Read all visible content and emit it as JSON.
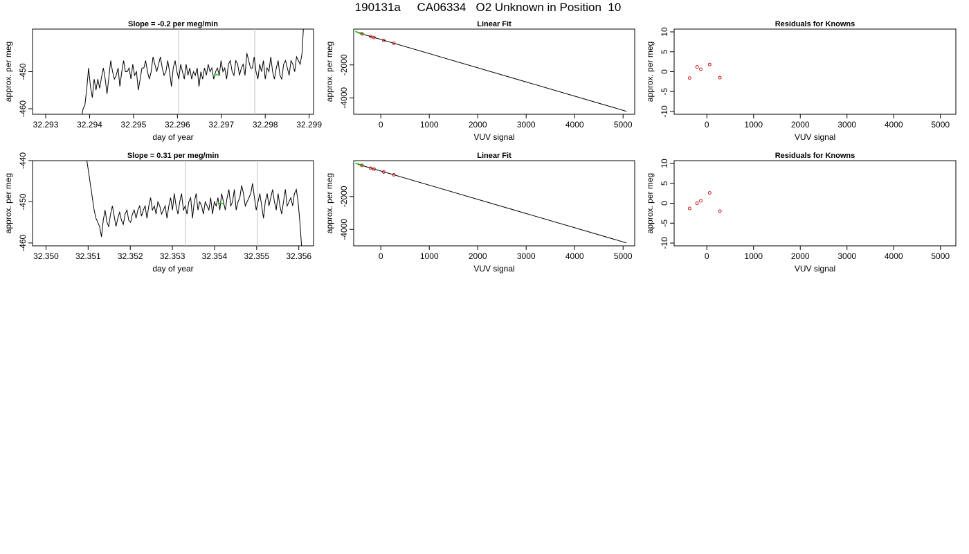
{
  "page_title": "190131a     CA06334   O2 Unknown in Position  10",
  "colors": {
    "line": "#000000",
    "highlight": "#00cc00",
    "known_points": "#cc0000",
    "vertical_markers": "#c8c8c8"
  },
  "chart_data": [
    {
      "type": "line",
      "title": "Slope =  -0.2  per meg/min",
      "xlabel": "day of year",
      "ylabel": "approx. per meg",
      "xlim": [
        32.2927,
        32.2991
      ],
      "ylim": [
        -461.5,
        -438.5
      ],
      "xticks": [
        "32.293",
        "32.294",
        "32.295",
        "32.296",
        "32.297",
        "32.298",
        "32.299"
      ],
      "xtick_values": [
        32.293,
        32.294,
        32.295,
        32.296,
        32.297,
        32.298,
        32.299
      ],
      "yticks": [
        "-460",
        "-450"
      ],
      "ytick_values": [
        -460,
        -450
      ],
      "vertical_lines": [
        32.29603,
        32.29776
      ],
      "trace_x_range": [
        32.29381,
        32.29888
      ],
      "trace": [
        -462.5,
        -460,
        -459,
        -454.5,
        -449,
        -454,
        -457,
        -452,
        -455,
        -452,
        -454.5,
        -451.5,
        -449,
        -452,
        -456,
        -451.5,
        -447,
        -450,
        -452,
        -451,
        -449,
        -454,
        -450,
        -447,
        -450,
        -450,
        -449,
        -452,
        -448,
        -451,
        -450,
        -455,
        -452,
        -449,
        -449,
        -447,
        -450,
        -452,
        -450,
        -446,
        -448,
        -450,
        -448,
        -446,
        -449,
        -451,
        -450,
        -447,
        -450,
        -454,
        -449,
        -447,
        -450,
        -452,
        -448,
        -450,
        -452,
        -448,
        -451,
        -449,
        -452,
        -450,
        -451,
        -449,
        -454,
        -450,
        -452,
        -449,
        -451,
        -448,
        -450,
        -449,
        -452,
        -450,
        -449,
        -451,
        -447,
        -450,
        -449,
        -452,
        -448,
        -447,
        -450,
        -451,
        -447,
        -448,
        -451,
        -449,
        -448,
        -451,
        -445,
        -447,
        -449,
        -449,
        -446,
        -450,
        -452,
        -448,
        -450,
        -447,
        -452,
        -449,
        -450,
        -446,
        -450,
        -452,
        -449,
        -447,
        -451,
        -452,
        -448,
        -447,
        -449,
        -451,
        -447,
        -448,
        -450,
        -446,
        -447,
        -448,
        -445,
        -436
      ],
      "highlight": [
        {
          "x": 32.2969,
          "y": -451.1
        }
      ]
    },
    {
      "type": "scatter",
      "title": "Linear Fit",
      "xlabel": "VUV signal",
      "ylabel": "approx. per meg",
      "xlim": [
        -560,
        5240
      ],
      "ylim": [
        -5000,
        180
      ],
      "xticks": [
        "0",
        "1000",
        "2000",
        "3000",
        "4000",
        "5000"
      ],
      "xtick_values": [
        0,
        1000,
        2000,
        3000,
        4000,
        5000
      ],
      "yticks": [
        "-4000",
        "-2000"
      ],
      "ytick_values": [
        -4000,
        -2000
      ],
      "fit_line": {
        "x": [
          -480,
          5070
        ],
        "y": [
          -35,
          -4820
        ]
      },
      "known_points": [
        {
          "x": -390,
          "y": -110
        },
        {
          "x": -210,
          "y": -280
        },
        {
          "x": -140,
          "y": -330
        },
        {
          "x": 60,
          "y": -510
        },
        {
          "x": 270,
          "y": -680
        }
      ],
      "unknown_points": [
        {
          "x": -455,
          "y": -50
        }
      ]
    },
    {
      "type": "scatter",
      "title": "Residuals for Knowns",
      "xlabel": "VUV signal",
      "ylabel": "approx. per meg",
      "xlim": [
        -700,
        5330
      ],
      "ylim": [
        -10.7,
        10.7
      ],
      "xticks": [
        "0",
        "1000",
        "2000",
        "3000",
        "4000",
        "5000"
      ],
      "xtick_values": [
        0,
        1000,
        2000,
        3000,
        4000,
        5000
      ],
      "yticks": [
        "-10",
        "-5",
        "0",
        "5",
        "10"
      ],
      "ytick_values": [
        -10,
        -5,
        0,
        5,
        10
      ],
      "points": [
        {
          "x": -370,
          "y": -1.6
        },
        {
          "x": -210,
          "y": 1.2
        },
        {
          "x": -130,
          "y": 0.6
        },
        {
          "x": 60,
          "y": 1.8
        },
        {
          "x": 280,
          "y": -1.5
        }
      ]
    },
    {
      "type": "line",
      "title": "Slope =  0.31  per meg/min",
      "xlabel": "day of year",
      "ylabel": "approx. per meg",
      "xlim": [
        32.34968,
        32.35635
      ],
      "ylim": [
        -460.7,
        -440
      ],
      "xticks": [
        "32.350",
        "32.351",
        "32.352",
        "32.353",
        "32.354",
        "32.355",
        "32.356"
      ],
      "xtick_values": [
        32.35,
        32.351,
        32.352,
        32.353,
        32.354,
        32.355,
        32.356
      ],
      "yticks": [
        "-460",
        "-450",
        "-440"
      ],
      "ytick_values": [
        -460,
        -450,
        -440
      ],
      "vertical_lines": [
        32.35331,
        32.35502
      ],
      "trace_x_range": [
        32.35097,
        32.35607
      ],
      "trace": [
        -440,
        -443,
        -446,
        -449,
        -452,
        -454,
        -455,
        -456,
        -458.5,
        -454.5,
        -452,
        -455,
        -456,
        -453,
        -451,
        -453.5,
        -456,
        -454,
        -452.5,
        -454.5,
        -455.5,
        -453,
        -452,
        -454.5,
        -455,
        -453,
        -452,
        -454,
        -452,
        -451,
        -453.5,
        -452,
        -451,
        -454,
        -451,
        -449,
        -452,
        -451,
        -453,
        -450,
        -451,
        -453,
        -452,
        -451,
        -454,
        -451,
        -449,
        -452,
        -448,
        -451,
        -453,
        -450,
        -448,
        -452,
        -451,
        -453,
        -450,
        -449,
        -454,
        -450,
        -448,
        -452,
        -450,
        -451,
        -453,
        -450,
        -451,
        -452,
        -449,
        -453,
        -450,
        -451,
        -449,
        -452,
        -448,
        -450,
        -452,
        -449,
        -447,
        -451,
        -450,
        -447,
        -452,
        -450,
        -449,
        -446,
        -448,
        -451,
        -450,
        -449,
        -448,
        -445.5,
        -449,
        -452,
        -450,
        -448,
        -451,
        -454,
        -450,
        -448,
        -451,
        -449,
        -447,
        -450,
        -452,
        -448,
        -451,
        -453,
        -450,
        -447,
        -451,
        -450,
        -449,
        -451,
        -448,
        -447,
        -450,
        -455,
        -461.5
      ],
      "highlight": [
        {
          "x": 32.35415,
          "y": -450.6
        }
      ]
    },
    {
      "type": "scatter",
      "title": "Linear Fit",
      "xlabel": "VUV signal",
      "ylabel": "approx. per meg",
      "xlim": [
        -560,
        5240
      ],
      "ylim": [
        -5000,
        180
      ],
      "xticks": [
        "0",
        "1000",
        "2000",
        "3000",
        "4000",
        "5000"
      ],
      "xtick_values": [
        0,
        1000,
        2000,
        3000,
        4000,
        5000
      ],
      "yticks": [
        "-4000",
        "-2000"
      ],
      "ytick_values": [
        -4000,
        -2000
      ],
      "fit_line": {
        "x": [
          -480,
          5070
        ],
        "y": [
          -35,
          -4820
        ]
      },
      "known_points": [
        {
          "x": -390,
          "y": -110
        },
        {
          "x": -210,
          "y": -280
        },
        {
          "x": -140,
          "y": -330
        },
        {
          "x": 60,
          "y": -510
        },
        {
          "x": 270,
          "y": -680
        }
      ],
      "unknown_points": [
        {
          "x": -455,
          "y": -50
        }
      ]
    },
    {
      "type": "scatter",
      "title": "Residuals for Knowns",
      "xlabel": "VUV signal",
      "ylabel": "approx. per meg",
      "xlim": [
        -700,
        5330
      ],
      "ylim": [
        -10.7,
        10.7
      ],
      "xticks": [
        "0",
        "1000",
        "2000",
        "3000",
        "4000",
        "5000"
      ],
      "xtick_values": [
        0,
        1000,
        2000,
        3000,
        4000,
        5000
      ],
      "yticks": [
        "-10",
        "-5",
        "0",
        "5",
        "10"
      ],
      "ytick_values": [
        -10,
        -5,
        0,
        5,
        10
      ],
      "points": [
        {
          "x": -370,
          "y": -1.3
        },
        {
          "x": -210,
          "y": 0.0
        },
        {
          "x": -130,
          "y": 0.6
        },
        {
          "x": 60,
          "y": 2.6
        },
        {
          "x": 280,
          "y": -2.0
        }
      ]
    }
  ]
}
